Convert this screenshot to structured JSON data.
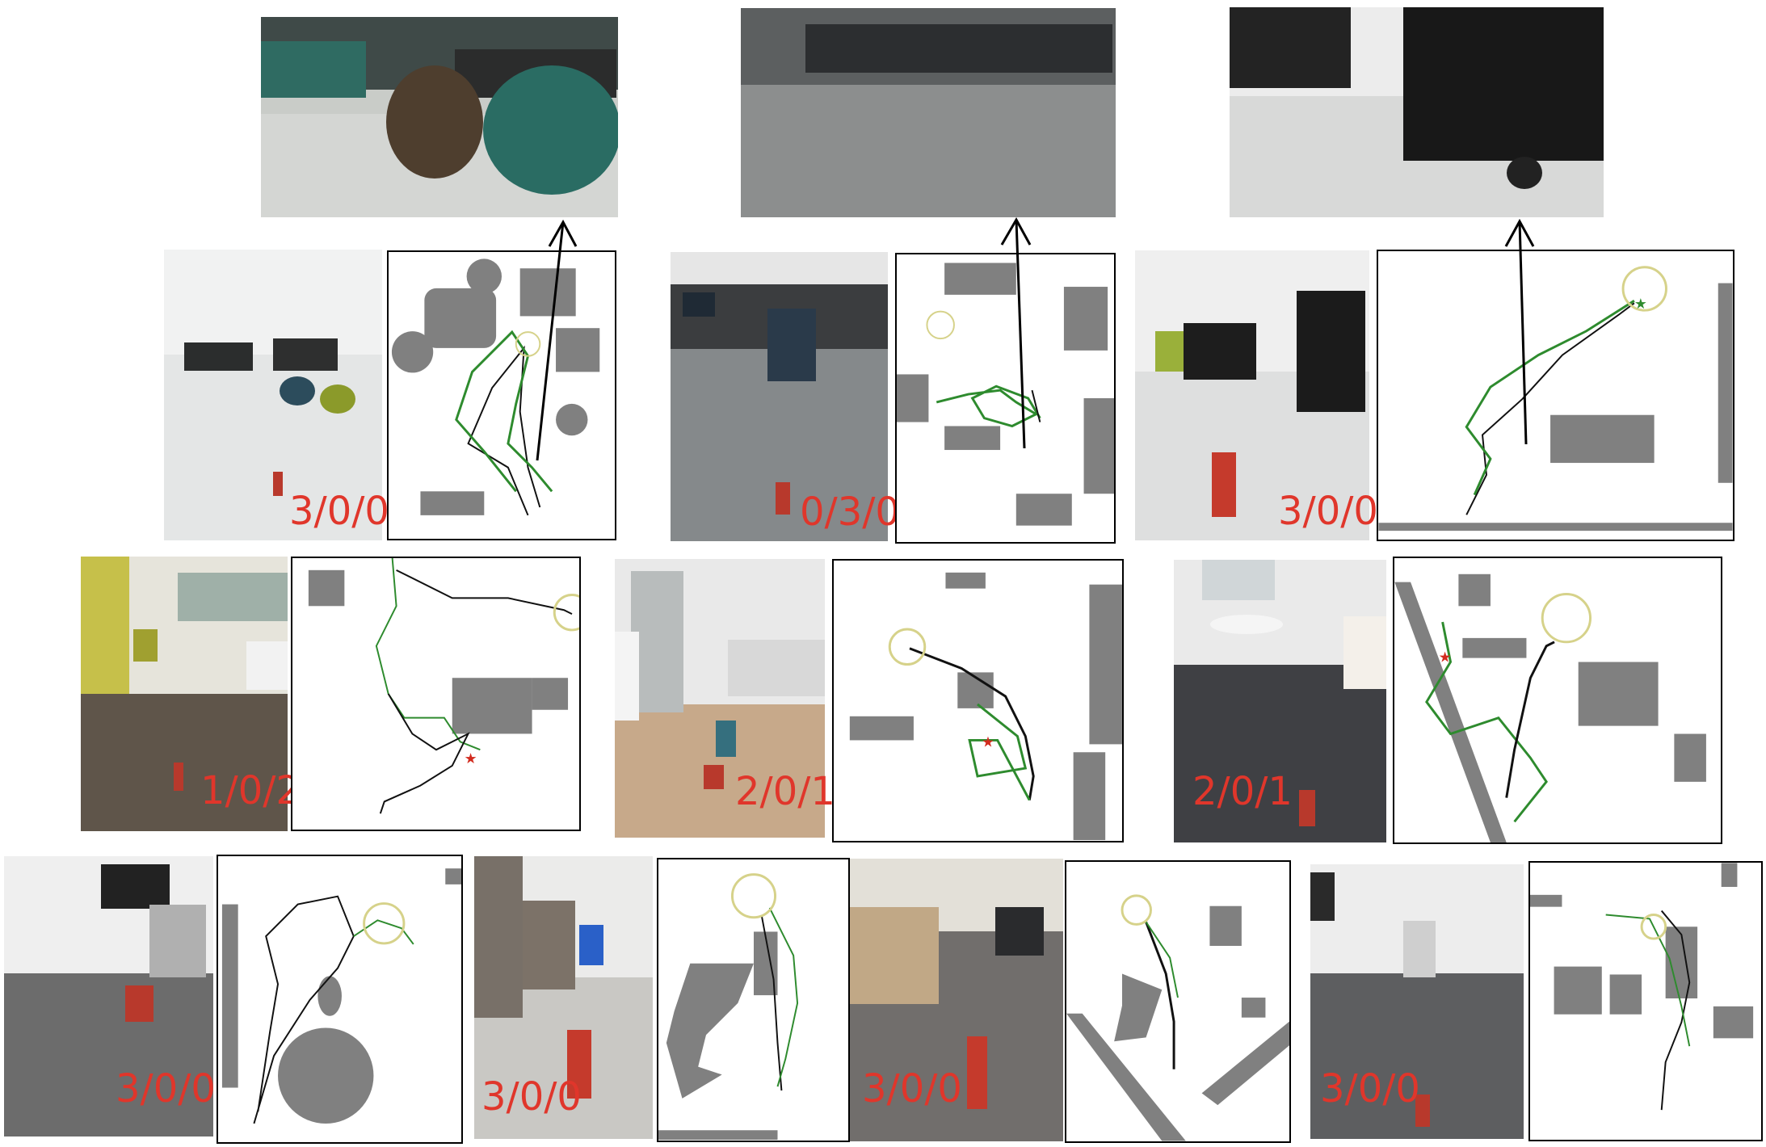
{
  "figure": {
    "legend_colors": {
      "trajectory_black": "#111111",
      "trajectory_green": "#2e8b2e",
      "obstacle_gray": "#808080",
      "goal_circle": "#d6d28a",
      "start_star_red": "#d22b1e",
      "score_red": "#e0362b"
    },
    "top_views": [
      {
        "id": "a",
        "scene": "lounge with teal and brown stools, low camera view"
      },
      {
        "id": "b",
        "scene": "office carpet, workstations, low camera view"
      },
      {
        "id": "c",
        "scene": "black cabinet on wheels, low camera view"
      }
    ],
    "episodes": [
      {
        "score": "3/0/0"
      },
      {
        "score": "0/3/0"
      },
      {
        "score": "3/0/0"
      },
      {
        "score": "1/0/2"
      },
      {
        "score": "2/0/1"
      },
      {
        "score": "2/0/1"
      },
      {
        "score": "3/0/0"
      },
      {
        "score": "3/0/0"
      },
      {
        "score": "3/0/0"
      },
      {
        "score": "3/0/0"
      }
    ]
  }
}
